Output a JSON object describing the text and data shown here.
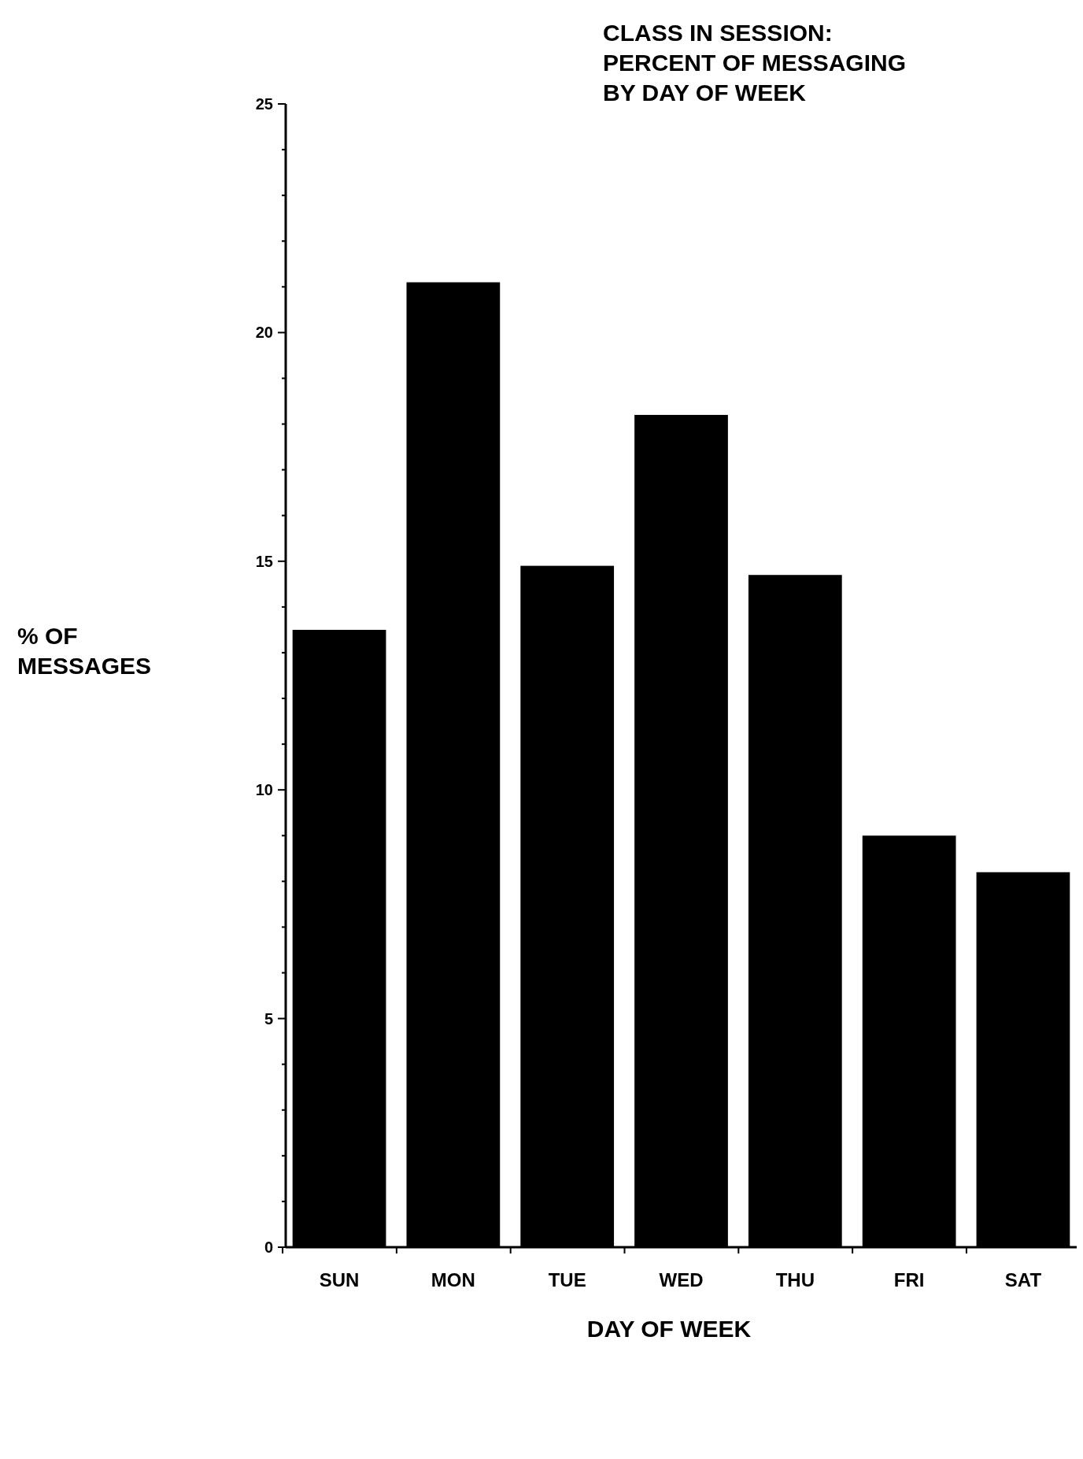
{
  "chart_data": {
    "type": "bar",
    "title": "CLASS IN SESSION:\nPERCENT OF MESSAGING\nBY DAY OF WEEK",
    "xlabel": "DAY OF WEEK",
    "ylabel": "% OF\nMESSAGES",
    "categories": [
      "SUN",
      "MON",
      "TUE",
      "WED",
      "THU",
      "FRI",
      "SAT"
    ],
    "values": [
      13.5,
      21.1,
      14.9,
      18.2,
      14.7,
      9.0,
      8.2
    ],
    "color": "#000000",
    "ylim": [
      0,
      25
    ],
    "yticks": [
      0,
      {
        "value": 1,
        "label": null
      },
      {
        "value": 2,
        "label": null
      },
      {
        "value": 3,
        "label": null
      },
      {
        "value": 4,
        "label": null
      },
      5,
      {
        "value": 6,
        "label": null
      },
      {
        "value": 7,
        "label": null
      },
      {
        "value": 8,
        "label": null
      },
      {
        "value": 9,
        "label": null
      },
      10,
      {
        "value": 11,
        "label": null
      },
      {
        "value": 12,
        "label": null
      },
      {
        "value": 13,
        "label": null
      },
      {
        "value": 14,
        "label": null
      },
      15,
      {
        "value": 16,
        "label": null
      },
      {
        "value": 17,
        "label": null
      },
      {
        "value": 18,
        "label": null
      },
      {
        "value": 19,
        "label": null
      },
      20,
      {
        "value": 21,
        "label": null
      },
      {
        "value": 22,
        "label": null
      },
      {
        "value": 23,
        "label": null
      },
      {
        "value": 24,
        "label": null
      },
      25
    ]
  }
}
